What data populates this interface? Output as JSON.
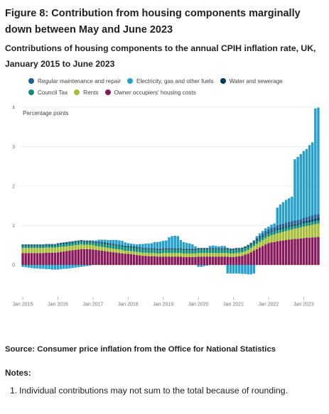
{
  "figure": {
    "title": "Figure 8: Contribution from housing components marginally down between May and June 2023",
    "subtitle": "Contributions of housing components to the annual CPIH inflation rate, UK, January 2015 to June 2023"
  },
  "legend": [
    {
      "name": "Regular maintenance and repair",
      "color": "#206095"
    },
    {
      "name": "Electricity, gas and other fuels",
      "color": "#27a0cc"
    },
    {
      "name": "Water and sewerage",
      "color": "#003c57"
    },
    {
      "name": "Council Tax",
      "color": "#118c7b"
    },
    {
      "name": "Rents",
      "color": "#a8bd3a"
    },
    {
      "name": "Owner occupiers' housing costs",
      "color": "#871a5b"
    }
  ],
  "chart_data": {
    "type": "bar",
    "stacked": true,
    "ylabel": "Percentage points",
    "ylim": [
      -1,
      4
    ],
    "yticks": [
      0,
      1,
      2,
      3,
      4
    ],
    "x_start": "2015-01",
    "x_end": "2023-06",
    "xticks": [
      "Jan 2015",
      "Jan 2016",
      "Jan 2017",
      "Jan 2018",
      "Jan 2019",
      "Jan 2020",
      "Jan 2021",
      "Jan 2022",
      "Jan 2023"
    ],
    "series": [
      {
        "name": "Owner occupiers' housing costs",
        "color": "#871a5b",
        "values": [
          0.3,
          0.3,
          0.3,
          0.3,
          0.3,
          0.3,
          0.3,
          0.3,
          0.31,
          0.31,
          0.31,
          0.31,
          0.32,
          0.33,
          0.34,
          0.35,
          0.36,
          0.37,
          0.38,
          0.39,
          0.4,
          0.4,
          0.4,
          0.4,
          0.39,
          0.38,
          0.37,
          0.36,
          0.35,
          0.34,
          0.33,
          0.32,
          0.31,
          0.3,
          0.29,
          0.28,
          0.28,
          0.27,
          0.26,
          0.25,
          0.24,
          0.23,
          0.23,
          0.22,
          0.22,
          0.22,
          0.21,
          0.21,
          0.21,
          0.21,
          0.21,
          0.21,
          0.21,
          0.21,
          0.21,
          0.2,
          0.2,
          0.2,
          0.2,
          0.2,
          0.21,
          0.21,
          0.21,
          0.21,
          0.21,
          0.21,
          0.21,
          0.21,
          0.21,
          0.21,
          0.21,
          0.2,
          0.2,
          0.21,
          0.22,
          0.23,
          0.26,
          0.28,
          0.32,
          0.36,
          0.4,
          0.44,
          0.48,
          0.52,
          0.55,
          0.57,
          0.58,
          0.6,
          0.61,
          0.62,
          0.63,
          0.64,
          0.65,
          0.66,
          0.66,
          0.67,
          0.68,
          0.69,
          0.69,
          0.7,
          0.7,
          0.71
        ]
      },
      {
        "name": "Rents",
        "color": "#a8bd3a",
        "values": [
          0.13,
          0.13,
          0.13,
          0.13,
          0.13,
          0.13,
          0.13,
          0.13,
          0.13,
          0.13,
          0.13,
          0.13,
          0.13,
          0.13,
          0.12,
          0.12,
          0.12,
          0.12,
          0.12,
          0.12,
          0.12,
          0.11,
          0.11,
          0.11,
          0.11,
          0.1,
          0.1,
          0.1,
          0.1,
          0.09,
          0.09,
          0.09,
          0.09,
          0.09,
          0.09,
          0.08,
          0.08,
          0.08,
          0.08,
          0.08,
          0.08,
          0.08,
          0.08,
          0.08,
          0.08,
          0.08,
          0.08,
          0.08,
          0.09,
          0.09,
          0.09,
          0.09,
          0.09,
          0.09,
          0.09,
          0.09,
          0.09,
          0.09,
          0.09,
          0.09,
          0.09,
          0.09,
          0.09,
          0.09,
          0.09,
          0.09,
          0.09,
          0.09,
          0.09,
          0.09,
          0.09,
          0.09,
          0.09,
          0.09,
          0.09,
          0.09,
          0.09,
          0.1,
          0.11,
          0.12,
          0.13,
          0.14,
          0.15,
          0.16,
          0.17,
          0.18,
          0.19,
          0.2,
          0.21,
          0.22,
          0.23,
          0.24,
          0.25,
          0.26,
          0.27,
          0.28,
          0.29,
          0.3,
          0.31,
          0.32,
          0.33,
          0.34
        ]
      },
      {
        "name": "Council Tax",
        "color": "#118c7b",
        "values": [
          0.05,
          0.05,
          0.05,
          0.05,
          0.05,
          0.05,
          0.05,
          0.05,
          0.05,
          0.05,
          0.05,
          0.05,
          0.06,
          0.06,
          0.07,
          0.07,
          0.07,
          0.07,
          0.07,
          0.07,
          0.07,
          0.07,
          0.07,
          0.07,
          0.07,
          0.08,
          0.09,
          0.09,
          0.09,
          0.09,
          0.09,
          0.09,
          0.09,
          0.09,
          0.09,
          0.09,
          0.09,
          0.09,
          0.09,
          0.09,
          0.09,
          0.09,
          0.09,
          0.09,
          0.09,
          0.09,
          0.09,
          0.09,
          0.09,
          0.09,
          0.09,
          0.09,
          0.09,
          0.09,
          0.09,
          0.09,
          0.09,
          0.09,
          0.09,
          0.09,
          0.09,
          0.09,
          0.09,
          0.09,
          0.09,
          0.09,
          0.09,
          0.09,
          0.09,
          0.09,
          0.09,
          0.09,
          0.09,
          0.09,
          0.08,
          0.08,
          0.08,
          0.08,
          0.08,
          0.08,
          0.08,
          0.08,
          0.08,
          0.08,
          0.08,
          0.08,
          0.08,
          0.08,
          0.08,
          0.08,
          0.08,
          0.08,
          0.08,
          0.08,
          0.08,
          0.08,
          0.08,
          0.08,
          0.08,
          0.08,
          0.08,
          0.08
        ]
      },
      {
        "name": "Water and sewerage",
        "color": "#003c57",
        "values": [
          0.02,
          0.02,
          0.02,
          0.02,
          0.02,
          0.02,
          0.02,
          0.02,
          0.02,
          0.02,
          0.02,
          0.02,
          0.02,
          0.02,
          0.02,
          0.02,
          0.02,
          0.02,
          0.02,
          0.02,
          0.02,
          0.02,
          0.02,
          0.02,
          0.02,
          0.02,
          0.02,
          0.02,
          0.02,
          0.02,
          0.02,
          0.02,
          0.02,
          0.02,
          0.02,
          0.02,
          0.02,
          0.02,
          0.02,
          0.02,
          0.02,
          0.02,
          0.02,
          0.02,
          0.02,
          0.02,
          0.02,
          0.02,
          0.02,
          0.02,
          0.02,
          0.02,
          0.02,
          0.02,
          0.02,
          0.02,
          0.02,
          0.02,
          0.02,
          0.02,
          0.02,
          0.02,
          0.02,
          0.02,
          0.02,
          0.02,
          0.02,
          0.02,
          0.02,
          0.02,
          0.02,
          0.02,
          0.02,
          0.02,
          0.02,
          0.02,
          0.02,
          0.02,
          0.02,
          0.02,
          0.02,
          0.02,
          0.02,
          0.02,
          0.02,
          0.02,
          0.02,
          0.03,
          0.03,
          0.03,
          0.03,
          0.03,
          0.03,
          0.03,
          0.03,
          0.03,
          0.04,
          0.05,
          0.06,
          0.06,
          0.06,
          0.06
        ]
      },
      {
        "name": "Regular maintenance and repair",
        "color": "#206095",
        "values": [
          0.02,
          0.02,
          0.02,
          0.02,
          0.02,
          0.02,
          0.02,
          0.02,
          0.02,
          0.02,
          0.02,
          0.02,
          0.02,
          0.02,
          0.02,
          0.02,
          0.02,
          0.02,
          0.02,
          0.02,
          0.02,
          0.02,
          0.02,
          0.02,
          0.02,
          0.02,
          0.02,
          0.02,
          0.02,
          0.02,
          0.02,
          0.02,
          0.02,
          0.02,
          0.02,
          0.02,
          0.02,
          0.02,
          0.02,
          0.02,
          0.02,
          0.02,
          0.02,
          0.02,
          0.02,
          0.02,
          0.02,
          0.02,
          0.02,
          0.02,
          0.02,
          0.02,
          0.02,
          0.02,
          0.02,
          0.02,
          0.02,
          0.02,
          0.02,
          0.02,
          0.02,
          0.02,
          0.02,
          0.02,
          0.02,
          0.02,
          0.02,
          0.02,
          0.02,
          0.02,
          0.02,
          0.02,
          0.02,
          0.02,
          0.02,
          0.02,
          0.02,
          0.03,
          0.03,
          0.04,
          0.05,
          0.06,
          0.07,
          0.08,
          0.08,
          0.09,
          0.09,
          0.09,
          0.1,
          0.1,
          0.1,
          0.1,
          0.1,
          0.1,
          0.1,
          0.1,
          0.1,
          0.1,
          0.1,
          0.1,
          0.1,
          0.1
        ]
      },
      {
        "name": "Electricity, gas and other fuels",
        "color": "#27a0cc",
        "values": [
          -0.05,
          -0.06,
          -0.07,
          -0.08,
          -0.09,
          -0.09,
          -0.1,
          -0.1,
          -0.11,
          -0.11,
          -0.12,
          -0.12,
          -0.12,
          -0.11,
          -0.1,
          -0.1,
          -0.09,
          -0.08,
          -0.07,
          -0.06,
          -0.05,
          -0.04,
          -0.03,
          -0.02,
          0.01,
          0.02,
          0.04,
          0.05,
          0.06,
          0.07,
          0.08,
          0.09,
          0.1,
          0.1,
          0.1,
          0.08,
          0.06,
          0.06,
          0.06,
          0.06,
          0.08,
          0.09,
          0.1,
          0.11,
          0.12,
          0.15,
          0.16,
          0.17,
          0.18,
          0.19,
          0.27,
          0.3,
          0.31,
          0.3,
          0.2,
          0.16,
          0.14,
          0.12,
          0.1,
          0.05,
          -0.05,
          -0.05,
          -0.03,
          -0.02,
          0.05,
          0.06,
          0.05,
          0.04,
          0.05,
          0.05,
          -0.22,
          -0.22,
          -0.22,
          -0.22,
          -0.22,
          -0.23,
          -0.23,
          -0.24,
          -0.24,
          -0.22,
          0.05,
          0.06,
          0.06,
          0.07,
          0.07,
          0.08,
          0.09,
          0.45,
          0.5,
          0.54,
          0.58,
          0.6,
          0.62,
          1.55,
          1.6,
          1.65,
          1.7,
          1.72,
          1.8,
          1.85,
          2.7,
          2.7
        ]
      }
    ]
  },
  "source": "Source: Consumer price inflation from the Office for National Statistics",
  "notes": {
    "heading": "Notes:",
    "items": [
      {
        "number": "1.",
        "text": "Individual contributions may not sum to the total because of rounding."
      }
    ]
  }
}
